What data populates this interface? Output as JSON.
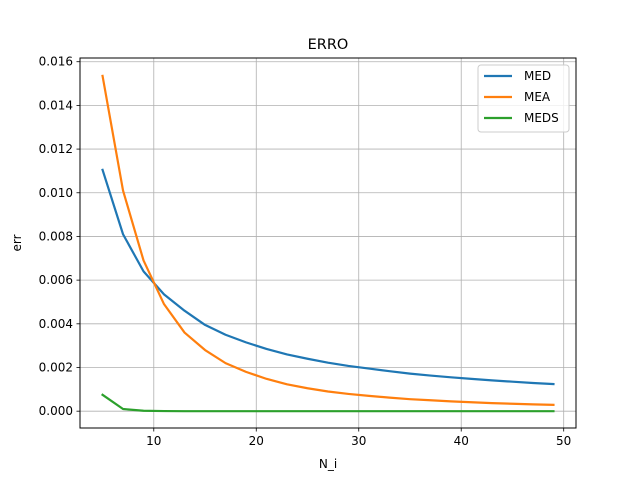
{
  "chart_data": {
    "type": "line",
    "title": "ERRO",
    "xlabel": "N_i",
    "ylabel": "err",
    "xlim": [
      2.8,
      51.2
    ],
    "ylim": [
      -0.00077,
      0.01617
    ],
    "xticks": [
      10,
      20,
      30,
      40,
      50
    ],
    "yticks": [
      0.0,
      0.002,
      0.004,
      0.006,
      0.008,
      0.01,
      0.012,
      0.014,
      0.016
    ],
    "xtick_labels": [
      "10",
      "20",
      "30",
      "40",
      "50"
    ],
    "ytick_labels": [
      "0.000",
      "0.002",
      "0.004",
      "0.006",
      "0.008",
      "0.010",
      "0.012",
      "0.014",
      "0.016"
    ],
    "grid": true,
    "legend_position": "top-right",
    "x": [
      5,
      7,
      9,
      11,
      13,
      15,
      17,
      19,
      21,
      23,
      25,
      27,
      29,
      31,
      33,
      35,
      37,
      39,
      41,
      43,
      45,
      47,
      49
    ],
    "series": [
      {
        "name": "MED",
        "color": "#1f77b4",
        "values": [
          0.01105,
          0.0081,
          0.0064,
          0.00535,
          0.0046,
          0.00395,
          0.0035,
          0.00315,
          0.00285,
          0.0026,
          0.0024,
          0.00222,
          0.00207,
          0.00195,
          0.00183,
          0.00172,
          0.00163,
          0.00155,
          0.00148,
          0.00141,
          0.00135,
          0.00129,
          0.00124
        ]
      },
      {
        "name": "MEA",
        "color": "#ff7f0e",
        "values": [
          0.01535,
          0.0101,
          0.0069,
          0.0049,
          0.0036,
          0.0028,
          0.0022,
          0.0018,
          0.00148,
          0.00123,
          0.00105,
          0.0009,
          0.00079,
          0.0007,
          0.00062,
          0.00055,
          0.0005,
          0.00045,
          0.00041,
          0.00037,
          0.00034,
          0.00031,
          0.00029
        ]
      },
      {
        "name": "MEDS",
        "color": "#2ca02c",
        "values": [
          0.00075,
          0.0001,
          2e-05,
          5e-06,
          0.0,
          0.0,
          0.0,
          0.0,
          0.0,
          0.0,
          0.0,
          0.0,
          0.0,
          0.0,
          0.0,
          0.0,
          0.0,
          0.0,
          0.0,
          0.0,
          0.0,
          0.0,
          0.0
        ]
      }
    ]
  }
}
